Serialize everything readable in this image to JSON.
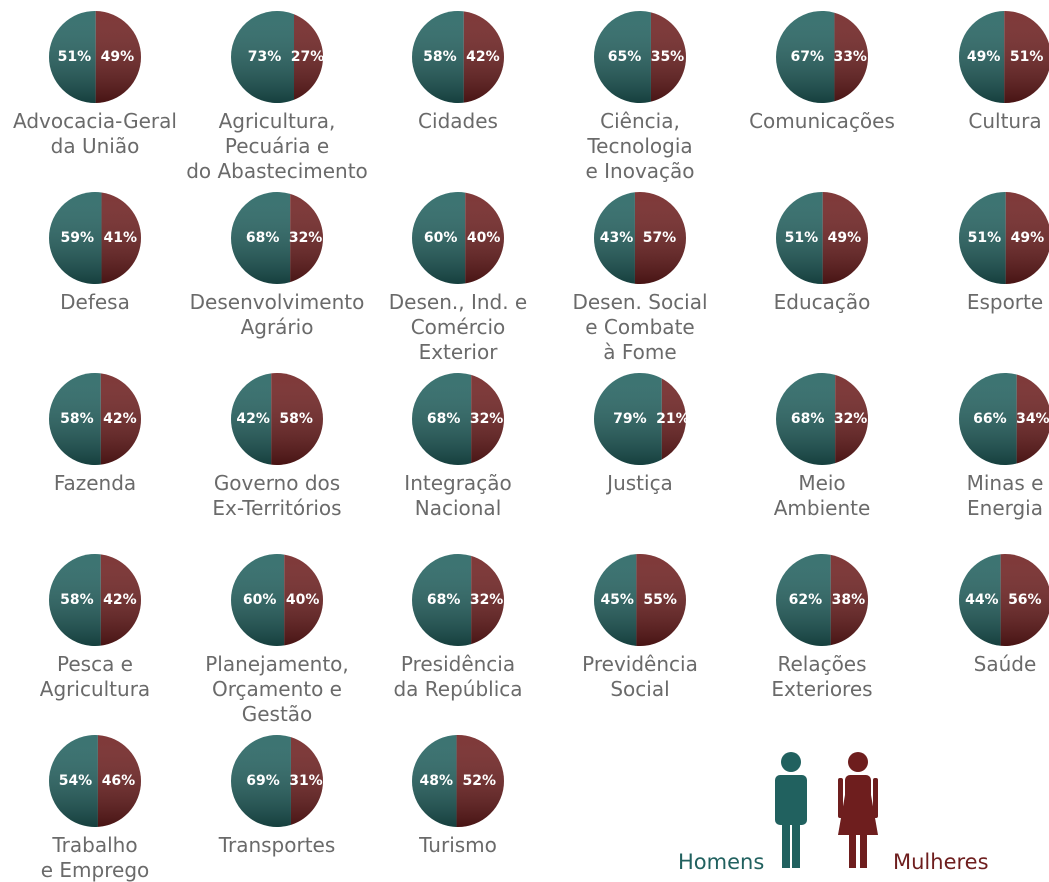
{
  "chart_data": [
    {
      "type": "pie",
      "label": [
        "Advocacia-Geral",
        "da União"
      ],
      "values": [
        51,
        49
      ],
      "value_labels": [
        "51%",
        "49%"
      ]
    },
    {
      "type": "pie",
      "label": [
        "Agricultura,",
        "Pecuária e",
        "do Abastecimento"
      ],
      "values": [
        73,
        27
      ],
      "value_labels": [
        "73%",
        "27%"
      ]
    },
    {
      "type": "pie",
      "label": [
        "Cidades"
      ],
      "values": [
        58,
        42
      ],
      "value_labels": [
        "58%",
        "42%"
      ]
    },
    {
      "type": "pie",
      "label": [
        "Ciência,",
        "Tecnologia",
        "e Inovação"
      ],
      "values": [
        65,
        35
      ],
      "value_labels": [
        "65%",
        "35%"
      ]
    },
    {
      "type": "pie",
      "label": [
        "Comunicações"
      ],
      "values": [
        67,
        33
      ],
      "value_labels": [
        "67%",
        "33%"
      ]
    },
    {
      "type": "pie",
      "label": [
        "Cultura"
      ],
      "values": [
        49,
        51
      ],
      "value_labels": [
        "49%",
        "51%"
      ]
    },
    {
      "type": "pie",
      "label": [
        "Defesa"
      ],
      "values": [
        59,
        41
      ],
      "value_labels": [
        "59%",
        "41%"
      ]
    },
    {
      "type": "pie",
      "label": [
        "Desenvolvimento",
        "Agrário"
      ],
      "values": [
        68,
        32
      ],
      "value_labels": [
        "68%",
        "32%"
      ]
    },
    {
      "type": "pie",
      "label": [
        "Desen., Ind. e",
        "Comércio",
        "Exterior"
      ],
      "values": [
        60,
        40
      ],
      "value_labels": [
        "60%",
        "40%"
      ]
    },
    {
      "type": "pie",
      "label": [
        "Desen. Social",
        "e Combate",
        "à Fome"
      ],
      "values": [
        43,
        57
      ],
      "value_labels": [
        "43%",
        "57%"
      ]
    },
    {
      "type": "pie",
      "label": [
        "Educação"
      ],
      "values": [
        51,
        49
      ],
      "value_labels": [
        "51%",
        "49%"
      ]
    },
    {
      "type": "pie",
      "label": [
        "Esporte"
      ],
      "values": [
        51,
        49
      ],
      "value_labels": [
        "51%",
        "49%"
      ]
    },
    {
      "type": "pie",
      "label": [
        "Fazenda"
      ],
      "values": [
        58,
        42
      ],
      "value_labels": [
        "58%",
        "42%"
      ]
    },
    {
      "type": "pie",
      "label": [
        "Governo dos",
        "Ex-Territórios"
      ],
      "values": [
        42,
        58
      ],
      "value_labels": [
        "42%",
        "58%"
      ]
    },
    {
      "type": "pie",
      "label": [
        "Integração",
        "Nacional"
      ],
      "values": [
        68,
        32
      ],
      "value_labels": [
        "68%",
        "32%"
      ]
    },
    {
      "type": "pie",
      "label": [
        "Justiça"
      ],
      "values": [
        79,
        21
      ],
      "value_labels": [
        "79%",
        "21%"
      ]
    },
    {
      "type": "pie",
      "label": [
        "Meio",
        "Ambiente"
      ],
      "values": [
        68,
        32
      ],
      "value_labels": [
        "68%",
        "32%"
      ]
    },
    {
      "type": "pie",
      "label": [
        "Minas e",
        "Energia"
      ],
      "values": [
        66,
        34
      ],
      "value_labels": [
        "66%",
        "34%"
      ]
    },
    {
      "type": "pie",
      "label": [
        "Pesca e",
        "Agricultura"
      ],
      "values": [
        58,
        42
      ],
      "value_labels": [
        "58%",
        "42%"
      ]
    },
    {
      "type": "pie",
      "label": [
        "Planejamento,",
        "Orçamento e",
        "Gestão"
      ],
      "values": [
        60,
        40
      ],
      "value_labels": [
        "60%",
        "40%"
      ]
    },
    {
      "type": "pie",
      "label": [
        "Presidência",
        "da República"
      ],
      "values": [
        68,
        32
      ],
      "value_labels": [
        "68%",
        "32%"
      ]
    },
    {
      "type": "pie",
      "label": [
        "Previdência",
        "Social"
      ],
      "values": [
        45,
        55
      ],
      "value_labels": [
        "45%",
        "55%"
      ]
    },
    {
      "type": "pie",
      "label": [
        "Relações",
        "Exteriores"
      ],
      "values": [
        62,
        38
      ],
      "value_labels": [
        "62%",
        "38%"
      ]
    },
    {
      "type": "pie",
      "label": [
        "Saúde"
      ],
      "values": [
        44,
        56
      ],
      "value_labels": [
        "44%",
        "56%"
      ]
    },
    {
      "type": "pie",
      "label": [
        "Trabalho",
        "e Emprego"
      ],
      "values": [
        54,
        46
      ],
      "value_labels": [
        "54%",
        "46%"
      ]
    },
    {
      "type": "pie",
      "label": [
        "Transportes"
      ],
      "values": [
        69,
        31
      ],
      "value_labels": [
        "69%",
        "31%"
      ]
    },
    {
      "type": "pie",
      "label": [
        "Turismo"
      ],
      "values": [
        48,
        52
      ],
      "value_labels": [
        "48%",
        "52%"
      ]
    }
  ],
  "legend": [
    "Homens",
    "Mulheres"
  ],
  "colors": [
    "#21615f",
    "#6e1e1e"
  ]
}
